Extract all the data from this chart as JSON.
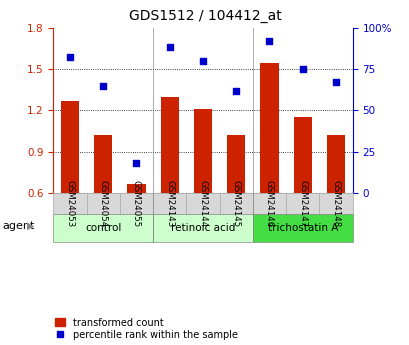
{
  "title": "GDS1512 / 104412_at",
  "samples": [
    "GSM24053",
    "GSM24054",
    "GSM24055",
    "GSM24143",
    "GSM24144",
    "GSM24145",
    "GSM24146",
    "GSM24147",
    "GSM24148"
  ],
  "bar_values": [
    1.27,
    1.02,
    0.67,
    1.3,
    1.21,
    1.02,
    1.54,
    1.15,
    1.02
  ],
  "dot_values_pct": [
    82,
    65,
    18,
    88,
    80,
    62,
    92,
    75,
    67
  ],
  "ylim_left": [
    0.6,
    1.8
  ],
  "ylim_right": [
    0,
    100
  ],
  "yticks_left": [
    0.6,
    0.9,
    1.2,
    1.5,
    1.8
  ],
  "yticks_right": [
    0,
    25,
    50,
    75,
    100
  ],
  "ytick_labels_right": [
    "0",
    "25",
    "50",
    "75",
    "100%"
  ],
  "bar_color": "#cc2200",
  "dot_color": "#0000cc",
  "groups": [
    {
      "label": "control",
      "start": 0,
      "end": 3,
      "color": "#ccffcc"
    },
    {
      "label": "retinoic acid",
      "start": 3,
      "end": 6,
      "color": "#ccffcc"
    },
    {
      "label": "trichostatin A",
      "start": 6,
      "end": 9,
      "color": "#44dd44"
    }
  ],
  "agent_label": "agent",
  "legend_bar_label": "transformed count",
  "legend_dot_label": "percentile rank within the sample",
  "left_tick_color": "#cc2200",
  "right_tick_color": "#0000cc",
  "sample_box_color": "#d8d8d8",
  "fig_bg": "#ffffff"
}
